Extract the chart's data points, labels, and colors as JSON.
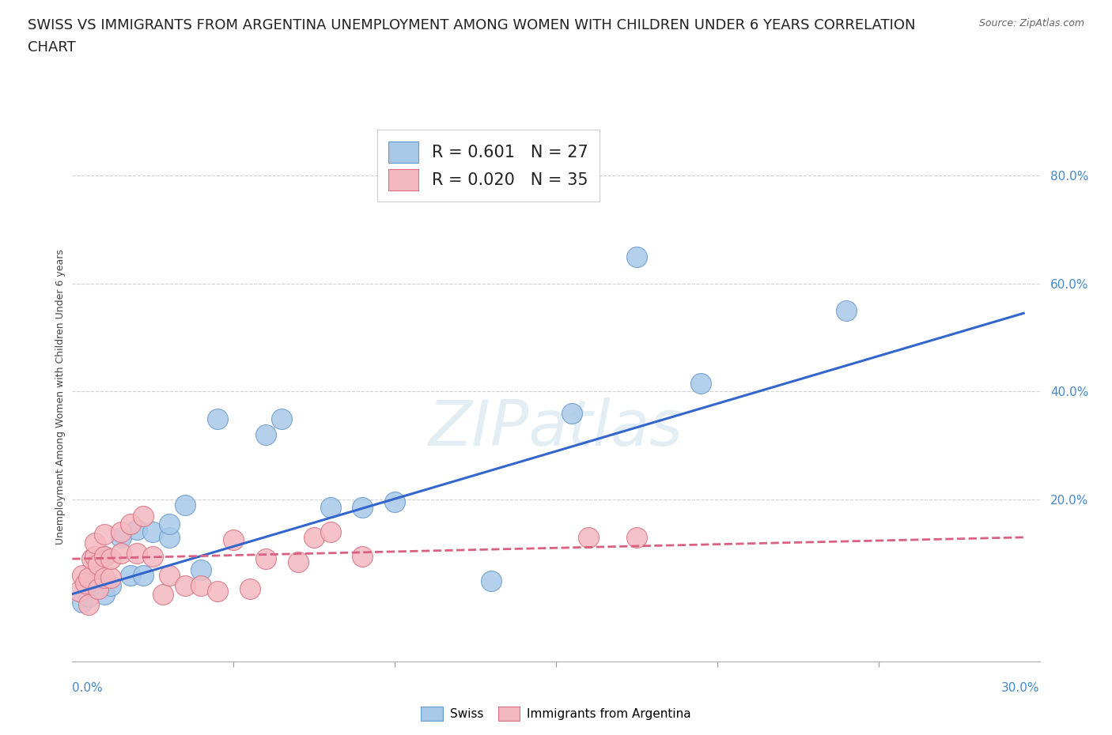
{
  "title_line1": "SWISS VS IMMIGRANTS FROM ARGENTINA UNEMPLOYMENT AMONG WOMEN WITH CHILDREN UNDER 6 YEARS CORRELATION",
  "title_line2": "CHART",
  "source": "Source: ZipAtlas.com",
  "xlabel_bottom_left": "0.0%",
  "xlabel_bottom_right": "30.0%",
  "ylabel": "Unemployment Among Women with Children Under 6 years",
  "y_tick_labels": [
    "20.0%",
    "40.0%",
    "60.0%",
    "80.0%"
  ],
  "y_tick_values": [
    0.2,
    0.4,
    0.6,
    0.8
  ],
  "x_range": [
    0.0,
    0.3
  ],
  "y_range": [
    -0.1,
    0.88
  ],
  "swiss_color": "#a8c8e8",
  "swiss_edge_color": "#6699cc",
  "argentina_color": "#f4b8c0",
  "argentina_edge_color": "#d97080",
  "swiss_R": 0.601,
  "swiss_N": 27,
  "argentina_R": 0.02,
  "argentina_N": 35,
  "swiss_scatter_x": [
    0.003,
    0.005,
    0.005,
    0.008,
    0.01,
    0.01,
    0.012,
    0.015,
    0.018,
    0.02,
    0.022,
    0.025,
    0.03,
    0.03,
    0.035,
    0.04,
    0.045,
    0.06,
    0.065,
    0.08,
    0.09,
    0.1,
    0.13,
    0.155,
    0.175,
    0.195,
    0.24
  ],
  "swiss_scatter_y": [
    0.01,
    0.02,
    0.05,
    0.04,
    0.025,
    0.095,
    0.04,
    0.13,
    0.06,
    0.145,
    0.06,
    0.14,
    0.13,
    0.155,
    0.19,
    0.07,
    0.35,
    0.32,
    0.35,
    0.185,
    0.185,
    0.195,
    0.05,
    0.36,
    0.65,
    0.415,
    0.55
  ],
  "argentina_scatter_x": [
    0.002,
    0.003,
    0.004,
    0.005,
    0.005,
    0.006,
    0.007,
    0.007,
    0.008,
    0.008,
    0.01,
    0.01,
    0.01,
    0.012,
    0.012,
    0.015,
    0.015,
    0.018,
    0.02,
    0.022,
    0.025,
    0.028,
    0.03,
    0.035,
    0.04,
    0.045,
    0.05,
    0.055,
    0.06,
    0.07,
    0.075,
    0.08,
    0.09,
    0.16,
    0.175
  ],
  "argentina_scatter_y": [
    0.03,
    0.06,
    0.045,
    0.055,
    0.005,
    0.09,
    0.095,
    0.12,
    0.035,
    0.08,
    0.055,
    0.095,
    0.135,
    0.055,
    0.09,
    0.1,
    0.14,
    0.155,
    0.1,
    0.17,
    0.095,
    0.025,
    0.06,
    0.04,
    0.04,
    0.03,
    0.125,
    0.035,
    0.09,
    0.085,
    0.13,
    0.14,
    0.095,
    0.13,
    0.13
  ],
  "swiss_trendline_x": [
    0.0,
    0.295
  ],
  "swiss_trendline_y": [
    0.025,
    0.545
  ],
  "argentina_trendline_x": [
    0.0,
    0.295
  ],
  "argentina_trendline_y": [
    0.09,
    0.13
  ],
  "trendline_blue": "#3366cc",
  "trendline_pink": "#d96080",
  "grid_color": "#d0d0d0",
  "background_color": "#ffffff",
  "title_fontsize": 13,
  "label_fontsize": 9,
  "tick_fontsize": 11,
  "legend_fontsize": 15
}
